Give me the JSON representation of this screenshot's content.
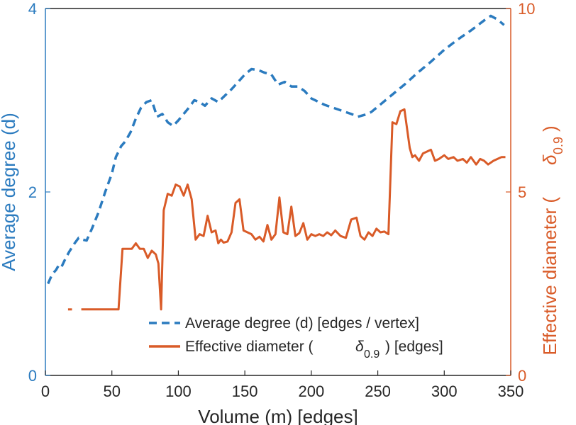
{
  "chart_data": {
    "type": "line",
    "xlabel": "Volume (m) [edges]",
    "ylabel_left": "Average degree (d)",
    "ylabel_right_main": "Effective diameter (",
    "ylabel_right_symbol": "δ",
    "ylabel_right_sub": "0.9",
    "ylabel_right_close": ")",
    "xlim": [
      0,
      350
    ],
    "ylim_left": [
      0,
      4
    ],
    "ylim_right": [
      0,
      10
    ],
    "x_ticks": [
      "0",
      "50",
      "100",
      "150",
      "200",
      "250",
      "300",
      "350"
    ],
    "y_left_ticks": [
      "0",
      "2",
      "4"
    ],
    "y_right_ticks": [
      "0",
      "5",
      "10"
    ],
    "legend": {
      "placement": "bottom-center",
      "entry1": "Average degree (d) [edges / vertex]",
      "entry2_pre": "Effective diameter (",
      "entry2_symbol": "δ",
      "entry2_sub": "0.9",
      "entry2_post": ") [edges]"
    },
    "colors": {
      "left_axis": "#2b7bbf",
      "right_axis": "#d95b28",
      "avg_degree": "#2b7bbf",
      "eff_diameter": "#d95b28"
    },
    "series": [
      {
        "axis": "left",
        "style": "dashed",
        "x": [
          2,
          5,
          8,
          10,
          12,
          15,
          18,
          22,
          25,
          28,
          31,
          35,
          40,
          45,
          50,
          53,
          57,
          60,
          64,
          68,
          72,
          76,
          80,
          84,
          88,
          92,
          96,
          100,
          104,
          108,
          112,
          116,
          120,
          125,
          130,
          135,
          140,
          145,
          150,
          155,
          160,
          165,
          170,
          175,
          180,
          185,
          190,
          195,
          200,
          210,
          220,
          230,
          235,
          240,
          245,
          250,
          260,
          270,
          280,
          290,
          300,
          310,
          320,
          330,
          335,
          340,
          345
        ],
        "values": [
          1.0,
          1.1,
          1.15,
          1.2,
          1.18,
          1.27,
          1.35,
          1.44,
          1.5,
          1.48,
          1.47,
          1.6,
          1.78,
          2.0,
          2.2,
          2.38,
          2.5,
          2.55,
          2.65,
          2.8,
          2.92,
          2.98,
          3.0,
          2.82,
          2.85,
          2.76,
          2.72,
          2.78,
          2.85,
          2.92,
          3.0,
          2.98,
          2.94,
          3.02,
          2.98,
          3.05,
          3.12,
          3.2,
          3.28,
          3.34,
          3.33,
          3.3,
          3.28,
          3.17,
          3.2,
          3.15,
          3.15,
          3.1,
          3.02,
          2.95,
          2.9,
          2.85,
          2.82,
          2.84,
          2.87,
          2.93,
          3.05,
          3.17,
          3.3,
          3.42,
          3.55,
          3.66,
          3.76,
          3.87,
          3.92,
          3.88,
          3.82
        ]
      },
      {
        "axis": "right",
        "style": "solid",
        "segments": [
          {
            "x": [
              17,
              20
            ],
            "values": [
              1.8,
              1.8
            ]
          },
          {
            "x": [
              27,
              55,
              58,
              65,
              68,
              71,
              74,
              77,
              80,
              83,
              85,
              87,
              89,
              92,
              95,
              98,
              101,
              104,
              107,
              110,
              113,
              116,
              119,
              122,
              125,
              128,
              130,
              132,
              134,
              137,
              140,
              143,
              146,
              149,
              152,
              155,
              158,
              161,
              164,
              167,
              170,
              173,
              176,
              179,
              182,
              185,
              188,
              191,
              194,
              197,
              200,
              203,
              206,
              209,
              212,
              215,
              218,
              222,
              226,
              230,
              234,
              237,
              240,
              243,
              246,
              249,
              252,
              255,
              258,
              261,
              264,
              267,
              270,
              274,
              276,
              278,
              281,
              284,
              287,
              290,
              293,
              296,
              300,
              303,
              307,
              310,
              314,
              317,
              320,
              324,
              327,
              330,
              333,
              337,
              340,
              343,
              346
            ],
            "values": [
              1.8,
              1.8,
              3.45,
              3.45,
              3.6,
              3.45,
              3.45,
              3.2,
              3.4,
              3.3,
              3.05,
              1.8,
              4.5,
              4.95,
              4.9,
              5.2,
              5.15,
              4.9,
              5.2,
              4.8,
              3.7,
              3.85,
              3.8,
              4.35,
              3.9,
              3.95,
              3.6,
              3.7,
              3.62,
              3.65,
              3.9,
              4.7,
              4.8,
              3.95,
              3.9,
              3.85,
              3.7,
              3.78,
              3.65,
              4.1,
              3.7,
              3.85,
              4.85,
              3.9,
              3.85,
              4.6,
              3.8,
              3.88,
              4.15,
              3.7,
              3.85,
              3.8,
              3.85,
              3.8,
              3.9,
              3.82,
              3.95,
              3.8,
              3.75,
              4.25,
              4.3,
              3.8,
              3.7,
              3.9,
              3.8,
              4.0,
              3.9,
              3.92,
              3.85,
              6.9,
              6.85,
              7.2,
              7.25,
              6.2,
              5.95,
              6.0,
              5.85,
              6.05,
              6.1,
              6.15,
              5.85,
              5.9,
              6.0,
              5.9,
              5.95,
              5.85,
              5.9,
              5.8,
              5.95,
              5.75,
              5.9,
              5.85,
              5.75,
              5.85,
              5.9,
              5.95,
              5.95
            ]
          }
        ]
      }
    ]
  }
}
